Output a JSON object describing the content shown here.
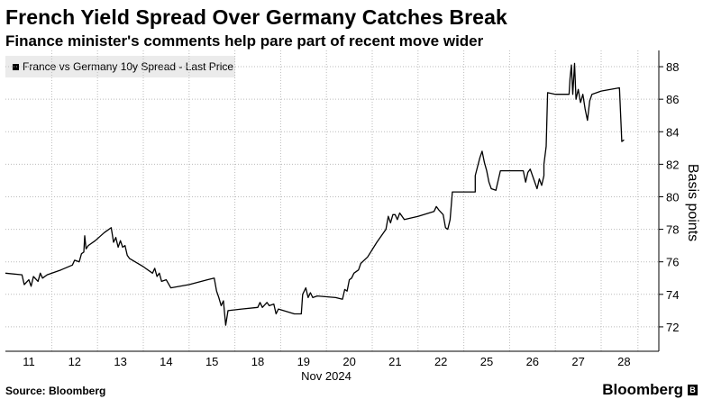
{
  "title": "French Yield Spread Over Germany Catches Break",
  "subtitle": "Finance minister's comments help pare part of recent move wider",
  "source": "Source: Bloomberg",
  "brand": "Bloomberg",
  "colors": {
    "line": "#000000",
    "grid": "#bbbbbb",
    "legend_bg": "#ebebeb"
  },
  "chart_data": {
    "type": "line",
    "title": "French Yield Spread Over Germany Catches Break",
    "ylabel": "Basis points",
    "xlabel": "Nov 2024",
    "ylim": [
      70.5,
      89
    ],
    "yticks": [
      72,
      74,
      76,
      78,
      80,
      82,
      84,
      86,
      88
    ],
    "xticks": [
      11,
      12,
      13,
      14,
      15,
      18,
      19,
      20,
      21,
      22,
      25,
      26,
      27,
      28
    ],
    "legend": {
      "label": "France vs Germany 10y Spread - Last Price",
      "placement": "top-left"
    },
    "series": [
      {
        "name": "France vs Germany 10y Spread - Last Price",
        "points": [
          [
            0.0,
            75.3
          ],
          [
            0.35,
            75.2
          ],
          [
            0.4,
            74.6
          ],
          [
            0.5,
            74.9
          ],
          [
            0.55,
            74.5
          ],
          [
            0.6,
            75.1
          ],
          [
            0.7,
            74.8
          ],
          [
            0.75,
            75.3
          ],
          [
            0.8,
            75.0
          ],
          [
            0.9,
            75.2
          ],
          [
            1.2,
            75.5
          ],
          [
            1.45,
            75.8
          ],
          [
            1.5,
            76.1
          ],
          [
            1.6,
            76.0
          ],
          [
            1.65,
            76.5
          ],
          [
            1.7,
            76.6
          ],
          [
            1.72,
            77.6
          ],
          [
            1.75,
            76.8
          ],
          [
            1.8,
            77.0
          ],
          [
            1.95,
            77.3
          ],
          [
            2.15,
            77.8
          ],
          [
            2.3,
            78.1
          ],
          [
            2.35,
            77.2
          ],
          [
            2.4,
            77.5
          ],
          [
            2.45,
            76.9
          ],
          [
            2.5,
            77.3
          ],
          [
            2.55,
            76.9
          ],
          [
            2.6,
            77.0
          ],
          [
            2.65,
            76.4
          ],
          [
            2.7,
            76.2
          ],
          [
            3.0,
            75.7
          ],
          [
            3.2,
            75.3
          ],
          [
            3.25,
            75.6
          ],
          [
            3.3,
            75.1
          ],
          [
            3.35,
            75.3
          ],
          [
            3.4,
            74.8
          ],
          [
            3.5,
            74.9
          ],
          [
            3.6,
            74.4
          ],
          [
            4.0,
            74.6
          ],
          [
            4.4,
            74.9
          ],
          [
            4.55,
            75.0
          ],
          [
            4.6,
            74.2
          ],
          [
            4.65,
            73.8
          ],
          [
            4.7,
            73.3
          ],
          [
            4.75,
            73.6
          ],
          [
            4.8,
            72.1
          ],
          [
            4.85,
            73.0
          ],
          [
            5.15,
            73.1
          ],
          [
            5.5,
            73.2
          ],
          [
            5.55,
            73.5
          ],
          [
            5.6,
            73.2
          ],
          [
            5.7,
            73.5
          ],
          [
            5.75,
            73.3
          ],
          [
            5.85,
            73.4
          ],
          [
            5.9,
            72.8
          ],
          [
            5.95,
            73.1
          ],
          [
            6.3,
            72.8
          ],
          [
            6.45,
            72.8
          ],
          [
            6.48,
            74.0
          ],
          [
            6.55,
            74.4
          ],
          [
            6.6,
            73.8
          ],
          [
            6.65,
            74.1
          ],
          [
            6.7,
            73.8
          ],
          [
            6.8,
            73.9
          ],
          [
            7.2,
            73.8
          ],
          [
            7.35,
            73.7
          ],
          [
            7.4,
            74.3
          ],
          [
            7.45,
            74.2
          ],
          [
            7.5,
            74.9
          ],
          [
            7.55,
            75.0
          ],
          [
            7.6,
            75.3
          ],
          [
            7.7,
            75.5
          ],
          [
            7.75,
            75.9
          ],
          [
            7.9,
            76.3
          ],
          [
            8.1,
            77.2
          ],
          [
            8.3,
            78.0
          ],
          [
            8.35,
            78.8
          ],
          [
            8.4,
            78.4
          ],
          [
            8.45,
            78.9
          ],
          [
            8.5,
            78.9
          ],
          [
            8.55,
            78.6
          ],
          [
            8.6,
            79.0
          ],
          [
            8.7,
            78.6
          ],
          [
            9.0,
            78.8
          ],
          [
            9.35,
            79.1
          ],
          [
            9.4,
            79.4
          ],
          [
            9.45,
            79.2
          ],
          [
            9.55,
            78.9
          ],
          [
            9.6,
            78.1
          ],
          [
            9.65,
            78.0
          ],
          [
            9.7,
            78.6
          ],
          [
            9.75,
            80.3
          ],
          [
            10.0,
            80.3
          ],
          [
            10.25,
            80.3
          ],
          [
            10.25,
            81.3
          ],
          [
            10.35,
            82.4
          ],
          [
            10.4,
            82.8
          ],
          [
            10.45,
            82.1
          ],
          [
            10.5,
            81.6
          ],
          [
            10.55,
            80.9
          ],
          [
            10.6,
            80.5
          ],
          [
            10.7,
            80.4
          ],
          [
            10.8,
            81.6
          ],
          [
            11.0,
            81.6
          ],
          [
            11.3,
            81.6
          ],
          [
            11.35,
            80.9
          ],
          [
            11.4,
            81.5
          ],
          [
            11.45,
            81.7
          ],
          [
            11.5,
            81.3
          ],
          [
            11.6,
            80.5
          ],
          [
            11.65,
            81.1
          ],
          [
            11.7,
            80.7
          ],
          [
            11.75,
            81.3
          ],
          [
            11.75,
            82.0
          ],
          [
            11.8,
            83.1
          ],
          [
            11.83,
            86.4
          ],
          [
            12.0,
            86.3
          ],
          [
            12.3,
            86.3
          ],
          [
            12.32,
            87.3
          ],
          [
            12.35,
            88.1
          ],
          [
            12.38,
            86.3
          ],
          [
            12.42,
            88.2
          ],
          [
            12.45,
            86.0
          ],
          [
            12.5,
            86.6
          ],
          [
            12.55,
            85.8
          ],
          [
            12.6,
            86.3
          ],
          [
            12.65,
            85.4
          ],
          [
            12.7,
            84.7
          ],
          [
            12.75,
            85.9
          ],
          [
            12.8,
            86.3
          ],
          [
            13.0,
            86.5
          ],
          [
            13.4,
            86.7
          ],
          [
            13.45,
            83.4
          ],
          [
            13.5,
            83.5
          ]
        ]
      }
    ]
  }
}
